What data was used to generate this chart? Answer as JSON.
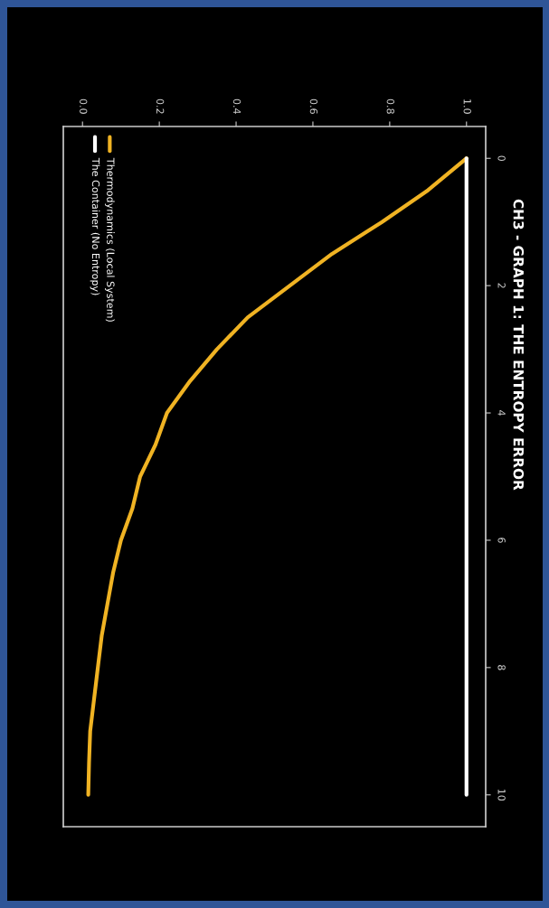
{
  "chart_data": {
    "type": "line",
    "title": "CH3 - GRAPH 1: THE ENTROPY ERROR",
    "series": [
      {
        "name": "Thermodynamics (Local System)",
        "color": "#f0b323",
        "x": [
          1.0,
          0.9,
          0.78,
          0.65,
          0.54,
          0.43,
          0.35,
          0.28,
          0.22,
          0.19,
          0.15,
          0.13,
          0.1,
          0.08,
          0.065,
          0.05,
          0.04,
          0.03,
          0.02,
          0.017,
          0.015
        ],
        "values": [
          0,
          0.5,
          1,
          1.5,
          2,
          2.5,
          3,
          3.5,
          4,
          4.5,
          5,
          5.5,
          6,
          6.5,
          7,
          7.5,
          8,
          8.5,
          9,
          9.5,
          10
        ]
      },
      {
        "name": "The Container (No Entropy)",
        "color": "#ffffff",
        "x": [
          1,
          1,
          1,
          1,
          1,
          1,
          1,
          1,
          1,
          1,
          1,
          1,
          1,
          1,
          1,
          1,
          1,
          1,
          1,
          1,
          1
        ],
        "values": [
          0,
          0.5,
          1,
          1.5,
          2,
          2.5,
          3,
          3.5,
          4,
          4.5,
          5,
          5.5,
          6,
          6.5,
          7,
          7.5,
          8,
          8.5,
          9,
          9.5,
          10
        ]
      }
    ],
    "ylim": [
      10.5,
      -0.5
    ],
    "yticks": [
      0,
      2,
      4,
      6,
      8,
      10
    ],
    "xlim": [
      -0.05,
      1.05
    ],
    "xticks": [
      {
        "value": 0,
        "label": "0.0"
      },
      {
        "value": 0.2,
        "label": "0.2"
      },
      {
        "value": 0.4,
        "label": "0.4"
      },
      {
        "value": 0.6,
        "label": "0.6"
      },
      {
        "value": 0.8,
        "label": "0.8"
      },
      {
        "value": 1,
        "label": "1.0"
      }
    ],
    "legend": "top left"
  }
}
